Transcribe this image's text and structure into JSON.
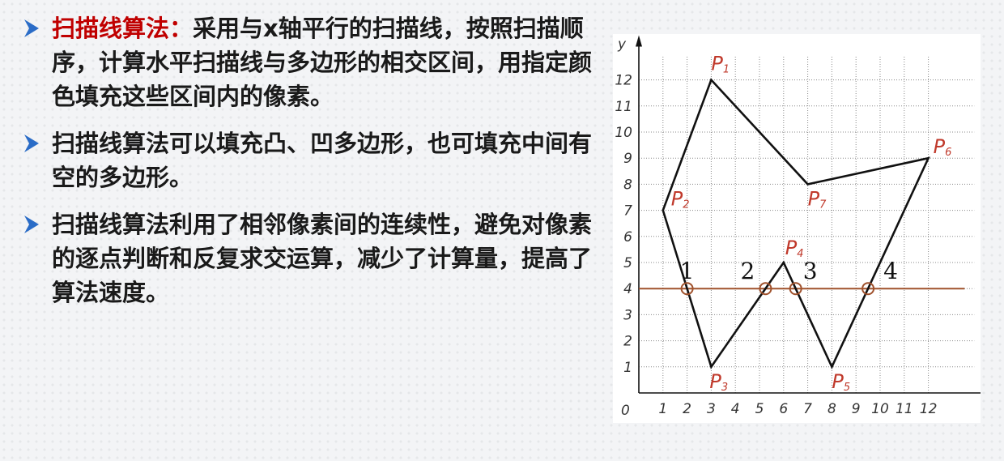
{
  "bullets": [
    {
      "highlight": "扫描线算法：",
      "text": "采用与x轴平行的扫描线，按照扫描顺序，计算水平扫描线与多边形的相交区间，用指定颜色填充这些区间内的像素。"
    },
    {
      "highlight": "",
      "text": "扫描线算法可以填充凸、凹多边形，也可填充中间有空的多边形。"
    },
    {
      "highlight": "",
      "text": "扫描线算法利用了相邻像素间的连续性，避免对像素的逐点判断和反复求交运算，减少了计算量，提高了算法速度。"
    }
  ],
  "diagram": {
    "x_axis_label": "x",
    "y_axis_label": "y",
    "origin_label": "0",
    "x_ticks": [
      "1",
      "2",
      "3",
      "4",
      "5",
      "6",
      "7",
      "8",
      "9",
      "10",
      "11",
      "12"
    ],
    "y_ticks": [
      "1",
      "2",
      "3",
      "4",
      "5",
      "6",
      "7",
      "8",
      "9",
      "10",
      "11",
      "12"
    ],
    "polygon": [
      {
        "name": "P1",
        "x": 3,
        "y": 12
      },
      {
        "name": "P7",
        "x": 7,
        "y": 8
      },
      {
        "name": "P6",
        "x": 12,
        "y": 9
      },
      {
        "name": "P5",
        "x": 8,
        "y": 1
      },
      {
        "name": "P4",
        "x": 6,
        "y": 5
      },
      {
        "name": "P3",
        "x": 3,
        "y": 1
      },
      {
        "name": "P2",
        "x": 1,
        "y": 7
      }
    ],
    "scanline_y": 4,
    "intersections": [
      {
        "label": "1",
        "x": 2
      },
      {
        "label": "2",
        "x": 5.25
      },
      {
        "label": "3",
        "x": 6.5
      },
      {
        "label": "4",
        "x": 9.5
      }
    ],
    "colors": {
      "polygon": "#111111",
      "scanline": "#a0522d",
      "labels": "#c0392b",
      "grid": "#888888"
    }
  }
}
